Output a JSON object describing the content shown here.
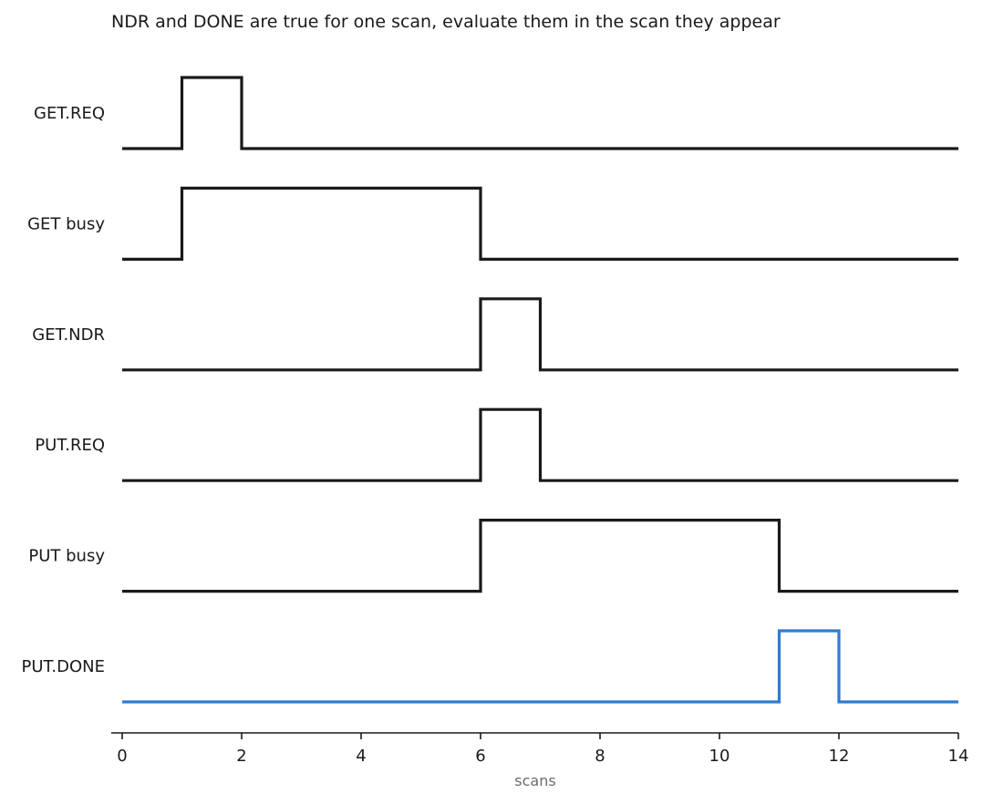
{
  "chart_data": {
    "type": "line",
    "subtype": "timing-diagram",
    "title": "NDR and DONE are true for one scan, evaluate them in the scan they appear",
    "xlabel": "scans",
    "ylabel": "",
    "xlim": [
      0,
      14
    ],
    "xticks": [
      0,
      2,
      4,
      6,
      8,
      10,
      12,
      14
    ],
    "grid": false,
    "legend": "none",
    "series": [
      {
        "name": "GET.REQ",
        "color": "#1a1a1a",
        "transitions": [
          [
            0,
            0
          ],
          [
            1,
            1
          ],
          [
            2,
            0
          ],
          [
            14,
            0
          ]
        ]
      },
      {
        "name": "GET busy",
        "color": "#1a1a1a",
        "transitions": [
          [
            0,
            0
          ],
          [
            1,
            1
          ],
          [
            6,
            0
          ],
          [
            14,
            0
          ]
        ]
      },
      {
        "name": "GET.NDR",
        "color": "#1a1a1a",
        "transitions": [
          [
            0,
            0
          ],
          [
            6,
            1
          ],
          [
            7,
            0
          ],
          [
            14,
            0
          ]
        ]
      },
      {
        "name": "PUT.REQ",
        "color": "#1a1a1a",
        "transitions": [
          [
            0,
            0
          ],
          [
            6,
            1
          ],
          [
            7,
            0
          ],
          [
            14,
            0
          ]
        ]
      },
      {
        "name": "PUT busy",
        "color": "#1a1a1a",
        "transitions": [
          [
            0,
            0
          ],
          [
            6,
            1
          ],
          [
            11,
            0
          ],
          [
            14,
            0
          ]
        ]
      },
      {
        "name": "PUT.DONE",
        "color": "#2f7bd1",
        "transitions": [
          [
            0,
            0
          ],
          [
            11,
            1
          ],
          [
            12,
            0
          ],
          [
            14,
            0
          ]
        ]
      }
    ]
  }
}
